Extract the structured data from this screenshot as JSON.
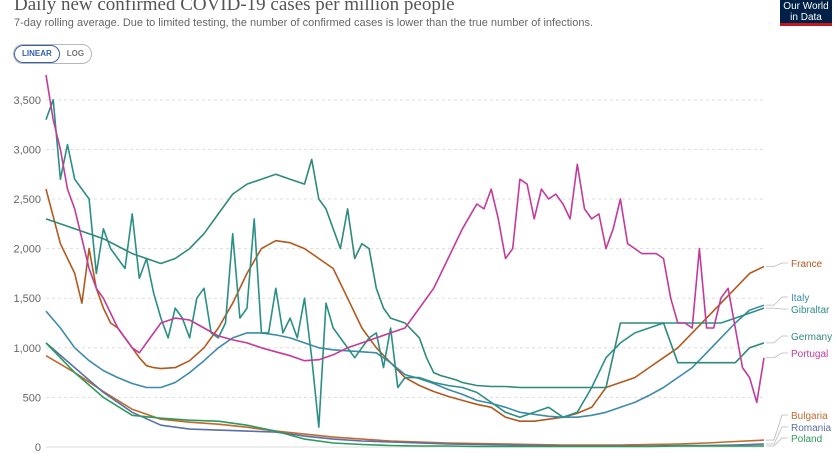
{
  "header": {
    "title": "Daily new confirmed COVID-19 cases per million people",
    "subtitle": "7-day rolling average. Due to limited testing, the number of confirmed cases is lower than the true number of infections.",
    "logo_line1": "Our World",
    "logo_line2": "in Data"
  },
  "controls": {
    "linear_label": "LINEAR",
    "log_label": "LOG",
    "selected": "LINEAR"
  },
  "colors": {
    "grid": "#dddddd",
    "axis_text": "#666666",
    "France": "#b3591f",
    "Italy": "#3e8aa9",
    "Gibraltar": "#2b8f86",
    "Germany": "#2e8a7a",
    "Portugal": "#c23b9a",
    "Bulgaria": "#c06a2e",
    "Romania": "#5b6fa8",
    "Poland": "#2e9a5c"
  },
  "chart_data": {
    "type": "line",
    "title": "Daily new confirmed COVID-19 cases per million people",
    "xlabel": "",
    "ylabel": "",
    "ylim": [
      0,
      3700
    ],
    "xlim": [
      0,
      100
    ],
    "x_note": "time index 0-100 (no date axis visible)",
    "yticks": [
      0,
      500,
      1000,
      1500,
      2000,
      2500,
      3000,
      3500
    ],
    "ytick_labels": [
      "0",
      "500",
      "1,000",
      "1,500",
      "2,000",
      "2,500",
      "3,000",
      "3,500"
    ],
    "grid": true,
    "legend": "right (labels at line ends)",
    "series": [
      {
        "name": "France",
        "x": [
          0,
          2,
          4,
          5,
          6,
          7,
          8,
          9,
          10,
          12,
          13,
          14,
          15,
          16,
          18,
          20,
          22,
          24,
          26,
          28,
          30,
          32,
          34,
          36,
          38,
          40,
          42,
          44,
          46,
          48,
          50,
          52,
          54,
          56,
          58,
          60,
          62,
          64,
          66,
          68,
          70,
          72,
          74,
          76,
          78,
          80,
          82,
          84,
          86,
          88,
          90,
          92,
          94,
          96,
          98,
          100
        ],
        "y": [
          2600,
          2050,
          1750,
          1450,
          2000,
          1600,
          1400,
          1250,
          1200,
          1000,
          900,
          820,
          800,
          790,
          800,
          870,
          1000,
          1200,
          1450,
          1750,
          2000,
          2080,
          2060,
          2000,
          1900,
          1800,
          1500,
          1200,
          1000,
          850,
          700,
          620,
          560,
          510,
          470,
          430,
          400,
          300,
          260,
          260,
          280,
          300,
          340,
          400,
          600,
          650,
          700,
          800,
          900,
          1000,
          1150,
          1300,
          1450,
          1600,
          1750,
          1820
        ]
      },
      {
        "name": "Italy",
        "x": [
          0,
          2,
          4,
          6,
          8,
          10,
          12,
          14,
          16,
          18,
          20,
          22,
          24,
          26,
          28,
          30,
          32,
          34,
          36,
          38,
          40,
          42,
          44,
          46,
          48,
          50,
          52,
          54,
          56,
          58,
          60,
          62,
          64,
          66,
          68,
          70,
          72,
          74,
          76,
          78,
          80,
          82,
          84,
          86,
          88,
          90,
          92,
          94,
          96,
          98,
          100
        ],
        "y": [
          1370,
          1200,
          1000,
          870,
          770,
          700,
          640,
          600,
          600,
          650,
          750,
          870,
          1000,
          1100,
          1150,
          1150,
          1130,
          1100,
          1050,
          1000,
          980,
          970,
          960,
          950,
          850,
          730,
          690,
          640,
          580,
          530,
          470,
          440,
          400,
          350,
          330,
          310,
          300,
          300,
          320,
          350,
          400,
          450,
          520,
          600,
          700,
          800,
          950,
          1100,
          1250,
          1380,
          1430
        ]
      },
      {
        "name": "Gibraltar",
        "x": [
          0,
          1,
          2,
          3,
          4,
          5,
          6,
          7,
          8,
          9,
          10,
          11,
          12,
          13,
          14,
          15,
          16,
          17,
          18,
          19,
          20,
          21,
          22,
          23,
          24,
          25,
          26,
          27,
          28,
          29,
          30,
          31,
          32,
          33,
          34,
          35,
          36,
          37,
          38,
          39,
          40,
          41,
          42,
          43,
          44,
          45,
          46,
          47,
          48,
          49,
          50,
          52,
          54,
          56,
          58,
          60,
          62,
          64,
          66,
          68,
          70,
          72,
          74,
          76,
          78,
          80,
          82,
          84,
          86,
          88,
          90,
          92,
          94,
          96,
          98,
          100
        ],
        "y": [
          3300,
          3500,
          2700,
          3050,
          2700,
          2600,
          2500,
          1750,
          2200,
          2000,
          1900,
          1800,
          2350,
          1700,
          1900,
          1550,
          1300,
          1100,
          1400,
          1300,
          1100,
          1500,
          1600,
          1150,
          1100,
          1250,
          2150,
          1300,
          1400,
          2300,
          1150,
          1150,
          1600,
          1150,
          1300,
          1100,
          1500,
          900,
          200,
          1450,
          1200,
          1100,
          1000,
          900,
          1000,
          1100,
          1150,
          800,
          1200,
          600,
          700,
          700,
          650,
          620,
          600,
          550,
          450,
          350,
          300,
          350,
          400,
          300,
          350,
          600,
          900,
          1050,
          1150,
          1200,
          1250,
          1250,
          1250,
          1250,
          1250,
          1300,
          1350,
          1400
        ]
      },
      {
        "name": "Germany",
        "x": [
          0,
          4,
          8,
          12,
          16,
          18,
          20,
          22,
          24,
          26,
          28,
          30,
          32,
          34,
          36,
          37,
          38,
          39,
          40,
          41,
          42,
          43,
          44,
          45,
          46,
          47,
          48,
          50,
          52,
          53,
          54,
          55,
          56,
          57,
          58,
          60,
          62,
          64,
          66,
          68,
          70,
          72,
          74,
          76,
          78,
          80,
          82,
          84,
          86,
          88,
          90,
          92,
          94,
          96,
          98,
          100
        ],
        "y": [
          2300,
          2200,
          2100,
          1950,
          1850,
          1900,
          2000,
          2150,
          2350,
          2550,
          2650,
          2700,
          2750,
          2700,
          2650,
          2900,
          2500,
          2400,
          2200,
          2000,
          2400,
          1900,
          2050,
          2000,
          1600,
          1400,
          1300,
          1250,
          1100,
          900,
          750,
          720,
          700,
          680,
          650,
          620,
          610,
          610,
          600,
          600,
          600,
          600,
          600,
          600,
          600,
          1250,
          1250,
          1250,
          1250,
          850,
          850,
          850,
          850,
          850,
          1000,
          1050
        ]
      },
      {
        "name": "Portugal",
        "x": [
          0,
          1,
          2,
          3,
          4,
          5,
          6,
          7,
          8,
          9,
          10,
          11,
          12,
          13,
          14,
          16,
          18,
          20,
          22,
          24,
          26,
          28,
          30,
          32,
          34,
          36,
          38,
          40,
          42,
          44,
          46,
          48,
          50,
          52,
          54,
          56,
          58,
          60,
          61,
          62,
          63,
          64,
          65,
          66,
          67,
          68,
          69,
          70,
          71,
          72,
          73,
          74,
          75,
          76,
          77,
          78,
          79,
          80,
          81,
          82,
          83,
          84,
          85,
          86,
          87,
          88,
          89,
          90,
          91,
          92,
          93,
          94,
          95,
          96,
          97,
          98,
          99,
          100
        ],
        "y": [
          3750,
          3300,
          3000,
          2600,
          2400,
          2100,
          1800,
          1600,
          1500,
          1350,
          1200,
          1100,
          1000,
          950,
          1050,
          1250,
          1300,
          1280,
          1200,
          1120,
          1080,
          1050,
          1000,
          960,
          920,
          870,
          880,
          930,
          1000,
          1050,
          1100,
          1150,
          1200,
          1400,
          1600,
          1900,
          2200,
          2450,
          2400,
          2600,
          2300,
          1900,
          2000,
          2700,
          2650,
          2300,
          2600,
          2500,
          2550,
          2450,
          2300,
          2850,
          2400,
          2300,
          2350,
          2000,
          2200,
          2500,
          2050,
          2000,
          1950,
          1950,
          1950,
          1900,
          1500,
          1250,
          1250,
          1200,
          2000,
          1200,
          1200,
          1500,
          1600,
          1200,
          800,
          700,
          450,
          900
        ]
      },
      {
        "name": "Bulgaria",
        "x": [
          0,
          4,
          8,
          12,
          16,
          20,
          24,
          28,
          32,
          36,
          40,
          44,
          48,
          52,
          56,
          60,
          64,
          68,
          72,
          76,
          80,
          84,
          88,
          92,
          96,
          100
        ],
        "y": [
          920,
          750,
          560,
          380,
          280,
          250,
          230,
          200,
          160,
          130,
          100,
          80,
          60,
          50,
          40,
          35,
          30,
          25,
          20,
          20,
          20,
          25,
          30,
          40,
          55,
          70
        ]
      },
      {
        "name": "Romania",
        "x": [
          0,
          4,
          8,
          12,
          16,
          20,
          24,
          28,
          32,
          36,
          40,
          44,
          48,
          52,
          56,
          60,
          64,
          68,
          72,
          76,
          80,
          84,
          88,
          92,
          96,
          100
        ],
        "y": [
          1050,
          800,
          550,
          350,
          220,
          180,
          170,
          160,
          150,
          110,
          80,
          60,
          50,
          40,
          30,
          25,
          20,
          15,
          10,
          10,
          10,
          10,
          15,
          15,
          20,
          30
        ]
      },
      {
        "name": "Poland",
        "x": [
          0,
          4,
          8,
          12,
          16,
          20,
          24,
          28,
          32,
          36,
          40,
          44,
          48,
          52,
          56,
          60,
          64,
          68,
          72,
          76,
          80,
          84,
          88,
          92,
          96,
          100
        ],
        "y": [
          1050,
          750,
          500,
          320,
          290,
          270,
          260,
          220,
          160,
          80,
          40,
          25,
          15,
          10,
          10,
          5,
          5,
          5,
          5,
          5,
          5,
          5,
          10,
          10,
          10,
          10
        ]
      }
    ]
  }
}
